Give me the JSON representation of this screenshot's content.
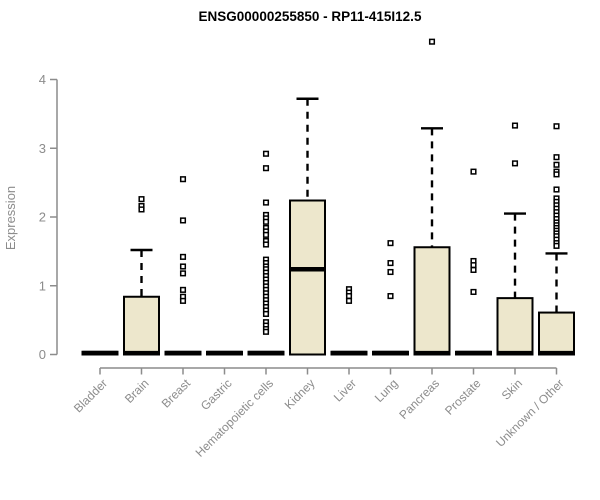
{
  "title": "ENSG00000255850 - RP11-415I12.5",
  "chart_data": {
    "type": "boxplot",
    "title": "ENSG00000255850 - RP11-415I12.5",
    "ylabel": "Expression",
    "xlabel": "",
    "ylim": [
      0,
      4
    ],
    "yticks": [
      0,
      1,
      2,
      3,
      4
    ],
    "grid": false,
    "legend": "none",
    "categories": [
      "Bladder",
      "Brain",
      "Breast",
      "Gastric",
      "Hematopoietic cells",
      "Kidney",
      "Liver",
      "Lung",
      "Pancreas",
      "Prostate",
      "Skin",
      "Unknown / Other"
    ],
    "boxes": [
      {
        "label": "Bladder",
        "q1": 0,
        "median": 0.02,
        "q3": 0.04,
        "whisker_low": 0,
        "whisker_high": 0.04,
        "outliers": []
      },
      {
        "label": "Brain",
        "q1": 0,
        "median": 0.02,
        "q3": 0.84,
        "whisker_low": 0,
        "whisker_high": 1.52,
        "outliers": [
          2.26,
          2.16,
          2.11
        ]
      },
      {
        "label": "Breast",
        "q1": 0,
        "median": 0.02,
        "q3": 0.04,
        "whisker_low": 0,
        "whisker_high": 0.04,
        "outliers": [
          2.55,
          1.95,
          1.42,
          1.28,
          1.18,
          0.94,
          0.84,
          0.78
        ]
      },
      {
        "label": "Gastric",
        "q1": 0,
        "median": 0.02,
        "q3": 0.04,
        "whisker_low": 0,
        "whisker_high": 0.04,
        "outliers": []
      },
      {
        "label": "Hematopoietic cells",
        "q1": 0,
        "median": 0.02,
        "q3": 0.04,
        "whisker_low": 0,
        "whisker_high": 0.04,
        "outliers": [
          2.92,
          2.71,
          2.21,
          2.03,
          1.98,
          1.93,
          1.84,
          1.79,
          1.74,
          1.65,
          1.6,
          1.38,
          1.33,
          1.28,
          1.24,
          1.19,
          1.14,
          1.09,
          1.04,
          0.99,
          0.94,
          0.89,
          0.84,
          0.79,
          0.74,
          0.69,
          0.64,
          0.59,
          0.47,
          0.42,
          0.37,
          0.33
        ]
      },
      {
        "label": "Kidney",
        "q1": 0,
        "median": 1.24,
        "q3": 2.24,
        "whisker_low": 0,
        "whisker_high": 3.72,
        "outliers": []
      },
      {
        "label": "Liver",
        "q1": 0,
        "median": 0.02,
        "q3": 0.04,
        "whisker_low": 0,
        "whisker_high": 0.04,
        "outliers": [
          0.95,
          0.9,
          0.85,
          0.78
        ]
      },
      {
        "label": "Lung",
        "q1": 0,
        "median": 0.02,
        "q3": 0.04,
        "whisker_low": 0,
        "whisker_high": 0.04,
        "outliers": [
          1.62,
          1.33,
          1.2,
          0.85
        ]
      },
      {
        "label": "Pancreas",
        "q1": 0,
        "median": 0.02,
        "q3": 1.56,
        "whisker_low": 0,
        "whisker_high": 3.29,
        "outliers": [
          4.55
        ]
      },
      {
        "label": "Prostate",
        "q1": 0,
        "median": 0.02,
        "q3": 0.04,
        "whisker_low": 0,
        "whisker_high": 0.04,
        "outliers": [
          2.66,
          1.36,
          1.3,
          1.23,
          0.91
        ]
      },
      {
        "label": "Skin",
        "q1": 0,
        "median": 0.02,
        "q3": 0.82,
        "whisker_low": 0,
        "whisker_high": 2.05,
        "outliers": [
          3.33,
          2.78
        ]
      },
      {
        "label": "Unknown / Other",
        "q1": 0,
        "median": 0.02,
        "q3": 0.61,
        "whisker_low": 0,
        "whisker_high": 1.47,
        "outliers": [
          3.32,
          2.87,
          2.76,
          2.66,
          2.62,
          2.4,
          2.27,
          2.22,
          2.17,
          2.12,
          2.07,
          2.02,
          1.97,
          1.92,
          1.88,
          1.84,
          1.8,
          1.76,
          1.72,
          1.67,
          1.62,
          1.58
        ]
      }
    ],
    "colors": {
      "box_fill": "#EDE7CC",
      "box_stroke": "#000000",
      "median": "#000000",
      "whisker": "#000000",
      "outlier": "#000000",
      "axis": "#8C8C8C",
      "tick_label": "#8C8C8C",
      "title": "#000000",
      "background": "#FFFFFF"
    }
  }
}
